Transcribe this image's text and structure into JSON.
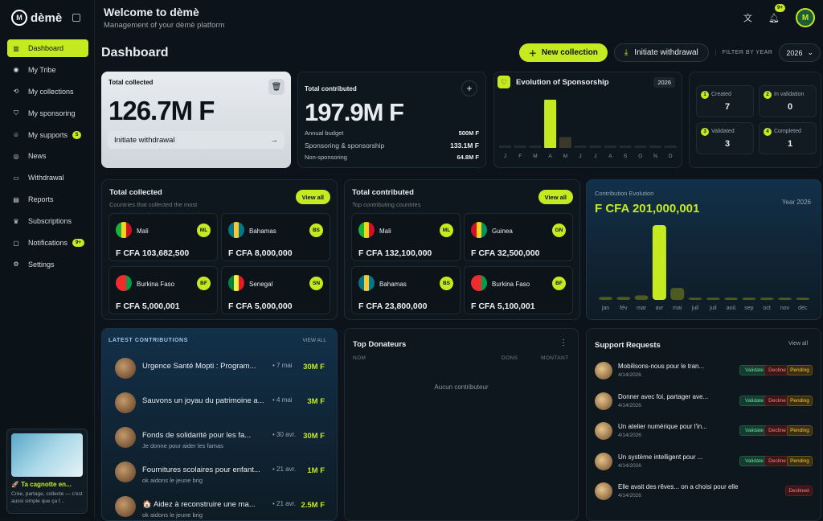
{
  "app": {
    "name": "dèmè",
    "logo_mark": "M"
  },
  "sidebar": {
    "items": [
      {
        "label": "Dashboard",
        "icon": "chart-bars-icon",
        "glyph": "▥",
        "active": true
      },
      {
        "label": "My Tribe",
        "icon": "map-pin-icon",
        "glyph": "◉"
      },
      {
        "label": "My collections",
        "icon": "handshake-icon",
        "glyph": "⟲"
      },
      {
        "label": "My sponsoring",
        "icon": "shield-check-icon",
        "glyph": "⛉"
      },
      {
        "label": "My supports",
        "icon": "user-icon",
        "glyph": "☺",
        "badge": "5"
      },
      {
        "label": "News",
        "icon": "globe-icon",
        "glyph": "◎"
      },
      {
        "label": "Withdrawal",
        "icon": "card-icon",
        "glyph": "▭"
      },
      {
        "label": "Reports",
        "icon": "bar-chart-icon",
        "glyph": "▤"
      },
      {
        "label": "Subscriptions",
        "icon": "crown-icon",
        "glyph": "♛"
      },
      {
        "label": "Notifications",
        "icon": "message-icon",
        "glyph": "▢",
        "badge": "9+"
      },
      {
        "label": "Settings",
        "icon": "gear-icon",
        "glyph": "⚙"
      }
    ],
    "promo": {
      "title": "🚀 Ta cagnotte en...",
      "desc": "Crée, partage, collecte — c'est aussi simple que ça f..."
    }
  },
  "header": {
    "title": "Welcome to dèmè",
    "subtitle": "Management of your dèmè platform",
    "notif_badge": "9+"
  },
  "dashboard": {
    "title": "Dashboard",
    "new_collection": "New collection",
    "initiate_withdrawal": "Initiate withdrawal",
    "filter_label": "FILTER BY YEAR",
    "year": "2026"
  },
  "total_collected": {
    "label": "Total collected",
    "value": "126.7M F",
    "withdraw": "Initiate withdrawal"
  },
  "total_contributed": {
    "label": "Total contributed",
    "value": "197.9M F",
    "rows": [
      {
        "label": "Annual budget",
        "value": "500M F"
      },
      {
        "label": "Sponsoring & sponsorship",
        "value": "133.1M F"
      },
      {
        "label": "Non-sponsoring",
        "value": "64.8M F"
      }
    ]
  },
  "sponsorship": {
    "title": "Evolution of Sponsorship",
    "year": "2026"
  },
  "statuses": [
    {
      "n": "1",
      "label": "Created",
      "value": "7"
    },
    {
      "n": "2",
      "label": "In validation",
      "value": "0"
    },
    {
      "n": "3",
      "label": "Validated",
      "value": "3"
    },
    {
      "n": "4",
      "label": "Completed",
      "value": "1"
    }
  ],
  "collected_countries": {
    "title": "Total collected",
    "subtitle": "Countries that collected the most",
    "view": "View all",
    "items": [
      {
        "name": "Mali",
        "code": "ML",
        "amount": "F CFA 103,682,500",
        "flag": [
          "#14b53a",
          "#fcd116",
          "#ce1126"
        ]
      },
      {
        "name": "Bahamas",
        "code": "BS",
        "amount": "F CFA 8,000,000",
        "flag": [
          "#00778b",
          "#ffc72c",
          "#00778b"
        ]
      },
      {
        "name": "Burkina Faso",
        "code": "BF",
        "amount": "F CFA 5,000,001",
        "flag": [
          "#ef2b2d",
          "#ef2b2d",
          "#009e49"
        ]
      },
      {
        "name": "Senegal",
        "code": "SN",
        "amount": "F CFA 5,000,000",
        "flag": [
          "#00853f",
          "#fdef42",
          "#e31b23"
        ]
      }
    ]
  },
  "contributing_countries": {
    "title": "Total contributed",
    "subtitle": "Top contributing countries",
    "view": "View all",
    "items": [
      {
        "name": "Mali",
        "code": "ML",
        "amount": "F CFA 132,100,000",
        "flag": [
          "#14b53a",
          "#fcd116",
          "#ce1126"
        ]
      },
      {
        "name": "Guinea",
        "code": "GN",
        "amount": "F CFA 32,500,000",
        "flag": [
          "#ce1126",
          "#fcd116",
          "#009460"
        ]
      },
      {
        "name": "Bahamas",
        "code": "BS",
        "amount": "F CFA 23,800,000",
        "flag": [
          "#00778b",
          "#ffc72c",
          "#00778b"
        ]
      },
      {
        "name": "Burkina Faso",
        "code": "BF",
        "amount": "F CFA 5,100,001",
        "flag": [
          "#ef2b2d",
          "#ef2b2d",
          "#009e49"
        ]
      }
    ]
  },
  "contribution_evolution": {
    "label": "Contribution Evolution",
    "year": "Year 2026",
    "value": "F CFA 201,000,001"
  },
  "chart_data": [
    {
      "type": "bar",
      "categories": [
        "J",
        "F",
        "M",
        "A",
        "M",
        "J",
        "J",
        "A",
        "S",
        "O",
        "N",
        "D"
      ],
      "values": [
        0,
        0,
        0,
        133.1,
        30,
        0,
        0,
        0,
        0,
        0,
        0,
        0
      ]
    },
    {
      "type": "bar",
      "categories": [
        "jan",
        "fév",
        "mar",
        "avr",
        "mai",
        "juil",
        "juil",
        "aoû",
        "sep",
        "oct",
        "nov",
        "déc"
      ],
      "values": [
        4,
        4,
        6,
        100,
        16,
        3,
        3,
        3,
        3,
        3,
        3,
        3
      ]
    }
  ],
  "latest": {
    "title": "LATEST CONTRIBUTIONS",
    "view": "VIEW ALL",
    "items": [
      {
        "name": "Urgence Santé Mopti : Program...",
        "date": "• 7 mai",
        "amount": "30M F",
        "sub": ""
      },
      {
        "name": "Sauvons un joyau du patrimoine a...",
        "date": "• 4 mai",
        "amount": "3M F",
        "sub": ""
      },
      {
        "name": "Fonds de solidarité pour les fa...",
        "date": "• 30 avr.",
        "amount": "30M F",
        "sub": "Je donne pour aider les famas"
      },
      {
        "name": "Fournitures scolaires pour enfant...",
        "date": "• 21 avr.",
        "amount": "1M F",
        "sub": "ok aidons le jeune brig"
      },
      {
        "name": "🏠 Aidez à reconstruire une ma...",
        "date": "• 21 avr.",
        "amount": "2.5M F",
        "sub": "ok aidons le jeune brig"
      }
    ]
  },
  "donors": {
    "title": "Top Donateurs",
    "col_name": "NOM",
    "col_dons": "DONS",
    "col_amount": "MONTANT",
    "empty": "Aucun contributeur"
  },
  "support": {
    "title": "Support Requests",
    "view": "View all",
    "validate": "Validate",
    "decline": "Decline",
    "pending": "Pending",
    "declined": "Declined",
    "items": [
      {
        "title": "Mobilisons-nous pour le tran...",
        "date": "4/14/2026",
        "status": "pending"
      },
      {
        "title": "Donner avec foi, partager ave...",
        "date": "4/14/2026",
        "status": "pending"
      },
      {
        "title": "Un atelier numérique pour l'in...",
        "date": "4/14/2026",
        "status": "pending"
      },
      {
        "title": "Un système intelligent pour ...",
        "date": "4/14/2026",
        "status": "pending"
      },
      {
        "title": "Elle avait des rêves... on a choisi pour elle",
        "date": "4/14/2026",
        "status": "declined"
      }
    ]
  }
}
